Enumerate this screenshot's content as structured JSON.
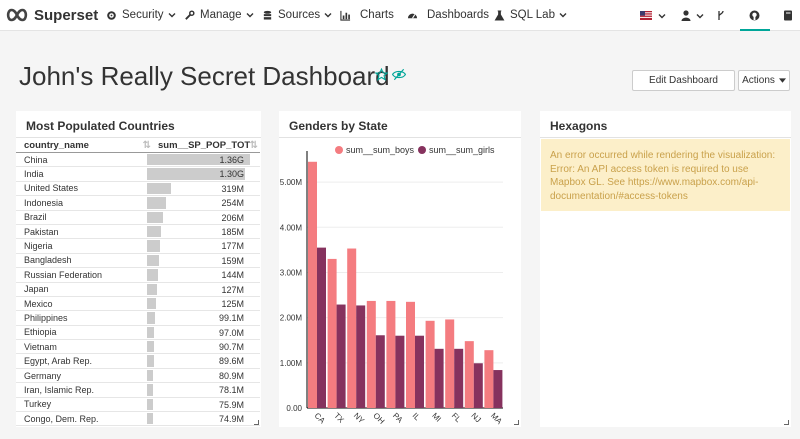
{
  "navbar": {
    "brand": "Superset",
    "items": [
      {
        "label": "Security",
        "icon": "gear-icon",
        "has_caret": true
      },
      {
        "label": "Manage",
        "icon": "wrench-icon",
        "has_caret": true
      },
      {
        "label": "Sources",
        "icon": "database-icon",
        "has_caret": true
      },
      {
        "label": "Charts",
        "icon": "bar-chart-icon",
        "has_caret": false
      },
      {
        "label": "Dashboards",
        "icon": "dashboard-icon",
        "has_caret": false
      },
      {
        "label": "SQL Lab",
        "icon": "flask-icon",
        "has_caret": true
      }
    ],
    "right_icons": [
      "us-flag-icon",
      "user-icon",
      "branch-icon",
      "github-icon",
      "book-icon"
    ],
    "accent": "#00a699"
  },
  "dashboard": {
    "title": "John's Really Secret Dashboard",
    "edit_button": "Edit Dashboard",
    "actions_button": "Actions",
    "favorite_icon": "star-icon",
    "publish_icon": "eye-slash-icon"
  },
  "table_panel": {
    "title": "Most Populated Countries",
    "columns": [
      "country_name",
      "sum__SP_POP_TOTL"
    ],
    "max_value": 1.36,
    "rows": [
      {
        "name": "China",
        "value": "1.36G",
        "num": 1.36
      },
      {
        "name": "India",
        "value": "1.30G",
        "num": 1.3
      },
      {
        "name": "United States",
        "value": "319M",
        "num": 0.319
      },
      {
        "name": "Indonesia",
        "value": "254M",
        "num": 0.254
      },
      {
        "name": "Brazil",
        "value": "206M",
        "num": 0.206
      },
      {
        "name": "Pakistan",
        "value": "185M",
        "num": 0.185
      },
      {
        "name": "Nigeria",
        "value": "177M",
        "num": 0.177
      },
      {
        "name": "Bangladesh",
        "value": "159M",
        "num": 0.159
      },
      {
        "name": "Russian Federation",
        "value": "144M",
        "num": 0.144
      },
      {
        "name": "Japan",
        "value": "127M",
        "num": 0.127
      },
      {
        "name": "Mexico",
        "value": "125M",
        "num": 0.125
      },
      {
        "name": "Philippines",
        "value": "99.1M",
        "num": 0.0991
      },
      {
        "name": "Ethiopia",
        "value": "97.0M",
        "num": 0.097
      },
      {
        "name": "Vietnam",
        "value": "90.7M",
        "num": 0.0907
      },
      {
        "name": "Egypt, Arab Rep.",
        "value": "89.6M",
        "num": 0.0896
      },
      {
        "name": "Germany",
        "value": "80.9M",
        "num": 0.0809
      },
      {
        "name": "Iran, Islamic Rep.",
        "value": "78.1M",
        "num": 0.0781
      },
      {
        "name": "Turkey",
        "value": "75.9M",
        "num": 0.0759
      },
      {
        "name": "Congo, Dem. Rep.",
        "value": "74.9M",
        "num": 0.0749
      }
    ]
  },
  "chart_panel": {
    "title": "Genders by State"
  },
  "chart_data": {
    "type": "bar",
    "title": "Genders by State",
    "categories": [
      "CA",
      "TX",
      "NY",
      "OH",
      "PA",
      "IL",
      "MI",
      "FL",
      "NJ",
      "MA"
    ],
    "series": [
      {
        "name": "sum__sum_boys",
        "color": "#f47c80",
        "values": [
          5.45,
          3.3,
          3.53,
          2.37,
          2.37,
          2.35,
          1.93,
          1.96,
          1.48,
          1.28
        ]
      },
      {
        "name": "sum__sum_girls",
        "color": "#86325e",
        "values": [
          3.55,
          2.29,
          2.27,
          1.61,
          1.6,
          1.6,
          1.31,
          1.31,
          0.99,
          0.84
        ]
      }
    ],
    "y_ticks": [
      "0.00",
      "1.00M",
      "2.00M",
      "3.00M",
      "4.00M",
      "5.00M"
    ],
    "ylim": [
      0,
      5.6
    ],
    "grid": true,
    "legend_position": "top"
  },
  "hexagon_panel": {
    "title": "Hexagons",
    "error": "An error occurred while rendering the visualization: Error: An API access token is required to use Mapbox GL. See https://www.mapbox.com/api-documentation/#access-tokens"
  }
}
